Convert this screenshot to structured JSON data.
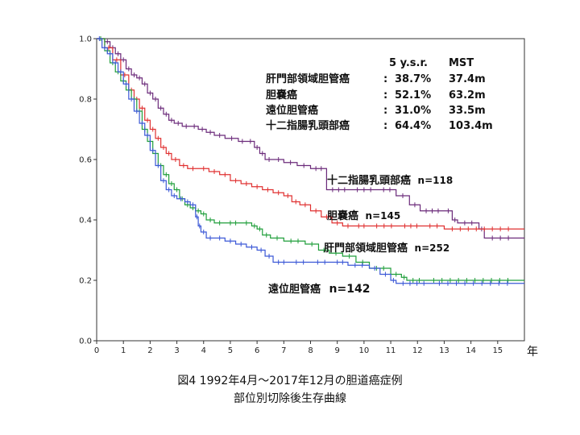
{
  "chart_data": {
    "type": "line",
    "subtype": "kaplan-meier survival curve",
    "xlabel": "年",
    "ylabel": "",
    "xlim": [
      0,
      16
    ],
    "ylim": [
      0.0,
      1.0
    ],
    "x_ticks": [
      "0",
      "1",
      "2",
      "3",
      "4",
      "5",
      "6",
      "7",
      "8",
      "9",
      "10",
      "11",
      "12",
      "13",
      "14",
      "15"
    ],
    "y_ticks": [
      "0.0",
      "0.2",
      "0.4",
      "0.6",
      "0.8",
      "1.0"
    ],
    "grid": false,
    "table": {
      "header": [
        "5 y.s.r.",
        "MST"
      ],
      "rows": [
        {
          "name": "肝門部領域胆管癌",
          "sep": ":",
          "ysr": "38.7%",
          "mst": "37.4m"
        },
        {
          "name": "胆嚢癌",
          "sep": ":",
          "ysr": "52.1%",
          "mst": "63.2m"
        },
        {
          "name": "遠位胆管癌",
          "sep": ":",
          "ysr": "31.0%",
          "mst": "33.5m"
        },
        {
          "name": "十二指腸乳頭部癌",
          "sep": ":",
          "ysr": "64.4%",
          "mst": "103.4m"
        }
      ]
    },
    "series": [
      {
        "name": "十二指腸乳頭部癌",
        "n_label": "n=118",
        "color": "#6b2a7a",
        "points": [
          [
            0,
            1.0
          ],
          [
            0.3,
            0.99
          ],
          [
            0.5,
            0.97
          ],
          [
            0.7,
            0.95
          ],
          [
            0.9,
            0.93
          ],
          [
            1.1,
            0.9
          ],
          [
            1.3,
            0.88
          ],
          [
            1.5,
            0.87
          ],
          [
            1.7,
            0.85
          ],
          [
            1.9,
            0.82
          ],
          [
            2.1,
            0.8
          ],
          [
            2.3,
            0.77
          ],
          [
            2.5,
            0.75
          ],
          [
            2.7,
            0.73
          ],
          [
            2.9,
            0.72
          ],
          [
            3.2,
            0.71
          ],
          [
            3.5,
            0.71
          ],
          [
            3.8,
            0.7
          ],
          [
            4.1,
            0.69
          ],
          [
            4.4,
            0.68
          ],
          [
            4.8,
            0.67
          ],
          [
            5.3,
            0.66
          ],
          [
            5.6,
            0.66
          ],
          [
            5.9,
            0.64
          ],
          [
            6.1,
            0.62
          ],
          [
            6.3,
            0.6
          ],
          [
            6.6,
            0.6
          ],
          [
            7.0,
            0.59
          ],
          [
            7.5,
            0.58
          ],
          [
            8.0,
            0.57
          ],
          [
            8.6,
            0.5
          ],
          [
            9.5,
            0.5
          ],
          [
            10.5,
            0.5
          ],
          [
            11.2,
            0.48
          ],
          [
            11.7,
            0.45
          ],
          [
            12.1,
            0.43
          ],
          [
            13.0,
            0.43
          ],
          [
            13.3,
            0.4
          ],
          [
            13.5,
            0.39
          ],
          [
            14.3,
            0.37
          ],
          [
            14.5,
            0.34
          ],
          [
            16.0,
            0.34
          ]
        ]
      },
      {
        "name": "胆嚢癌",
        "n_label": "n=145",
        "color": "#e03030",
        "points": [
          [
            0,
            1.0
          ],
          [
            0.3,
            0.97
          ],
          [
            0.6,
            0.93
          ],
          [
            0.9,
            0.88
          ],
          [
            1.2,
            0.83
          ],
          [
            1.4,
            0.8
          ],
          [
            1.6,
            0.77
          ],
          [
            1.8,
            0.73
          ],
          [
            2.0,
            0.7
          ],
          [
            2.2,
            0.67
          ],
          [
            2.4,
            0.64
          ],
          [
            2.6,
            0.62
          ],
          [
            2.8,
            0.6
          ],
          [
            3.1,
            0.58
          ],
          [
            3.4,
            0.57
          ],
          [
            3.8,
            0.57
          ],
          [
            4.2,
            0.56
          ],
          [
            4.6,
            0.55
          ],
          [
            5.0,
            0.53
          ],
          [
            5.4,
            0.52
          ],
          [
            5.8,
            0.51
          ],
          [
            6.2,
            0.5
          ],
          [
            6.6,
            0.49
          ],
          [
            7.0,
            0.48
          ],
          [
            7.3,
            0.46
          ],
          [
            7.6,
            0.45
          ],
          [
            8.0,
            0.43
          ],
          [
            8.4,
            0.41
          ],
          [
            8.8,
            0.39
          ],
          [
            9.2,
            0.38
          ],
          [
            9.6,
            0.38
          ],
          [
            10.2,
            0.38
          ],
          [
            11.3,
            0.38
          ],
          [
            12.2,
            0.38
          ],
          [
            13.0,
            0.37
          ],
          [
            16.0,
            0.37
          ]
        ]
      },
      {
        "name": "肝門部領域胆管癌",
        "n_label": "n=252",
        "color": "#1f9e3a",
        "points": [
          [
            0,
            1.0
          ],
          [
            0.3,
            0.96
          ],
          [
            0.5,
            0.92
          ],
          [
            0.7,
            0.89
          ],
          [
            0.9,
            0.86
          ],
          [
            1.1,
            0.83
          ],
          [
            1.3,
            0.8
          ],
          [
            1.5,
            0.76
          ],
          [
            1.7,
            0.7
          ],
          [
            1.9,
            0.66
          ],
          [
            2.1,
            0.62
          ],
          [
            2.3,
            0.58
          ],
          [
            2.5,
            0.55
          ],
          [
            2.7,
            0.52
          ],
          [
            2.9,
            0.5
          ],
          [
            3.1,
            0.47
          ],
          [
            3.3,
            0.45
          ],
          [
            3.5,
            0.44
          ],
          [
            3.7,
            0.43
          ],
          [
            3.9,
            0.42
          ],
          [
            4.1,
            0.4
          ],
          [
            4.4,
            0.39
          ],
          [
            4.8,
            0.39
          ],
          [
            5.4,
            0.39
          ],
          [
            5.8,
            0.38
          ],
          [
            6.0,
            0.37
          ],
          [
            6.2,
            0.35
          ],
          [
            6.5,
            0.34
          ],
          [
            7.0,
            0.33
          ],
          [
            7.8,
            0.32
          ],
          [
            8.3,
            0.3
          ],
          [
            8.7,
            0.29
          ],
          [
            9.2,
            0.28
          ],
          [
            9.7,
            0.26
          ],
          [
            10.2,
            0.24
          ],
          [
            11.0,
            0.22
          ],
          [
            11.4,
            0.21
          ],
          [
            11.6,
            0.2
          ],
          [
            12.3,
            0.2
          ],
          [
            16.0,
            0.2
          ]
        ]
      },
      {
        "name": "遠位胆管癌",
        "n_label": "n=142",
        "color": "#3a57d6",
        "points": [
          [
            0,
            1.0
          ],
          [
            0.2,
            0.97
          ],
          [
            0.4,
            0.95
          ],
          [
            0.6,
            0.92
          ],
          [
            0.8,
            0.89
          ],
          [
            1.0,
            0.85
          ],
          [
            1.2,
            0.8
          ],
          [
            1.4,
            0.76
          ],
          [
            1.6,
            0.72
          ],
          [
            1.8,
            0.68
          ],
          [
            2.0,
            0.63
          ],
          [
            2.2,
            0.58
          ],
          [
            2.4,
            0.53
          ],
          [
            2.6,
            0.5
          ],
          [
            2.8,
            0.48
          ],
          [
            3.0,
            0.47
          ],
          [
            3.3,
            0.46
          ],
          [
            3.5,
            0.45
          ],
          [
            3.7,
            0.41
          ],
          [
            3.8,
            0.38
          ],
          [
            3.9,
            0.36
          ],
          [
            4.1,
            0.34
          ],
          [
            4.4,
            0.34
          ],
          [
            4.8,
            0.33
          ],
          [
            5.2,
            0.32
          ],
          [
            5.6,
            0.31
          ],
          [
            6.0,
            0.3
          ],
          [
            6.3,
            0.28
          ],
          [
            6.6,
            0.26
          ],
          [
            7.2,
            0.26
          ],
          [
            8.0,
            0.26
          ],
          [
            8.8,
            0.26
          ],
          [
            9.4,
            0.25
          ],
          [
            10.2,
            0.24
          ],
          [
            10.6,
            0.22
          ],
          [
            11.0,
            0.2
          ],
          [
            11.2,
            0.19
          ],
          [
            12.5,
            0.19
          ],
          [
            16.0,
            0.19
          ]
        ]
      }
    ]
  },
  "caption": {
    "line1": "図4  1992年4月～2017年12月の胆道癌症例",
    "line2": "部位別切除後生存曲線"
  }
}
